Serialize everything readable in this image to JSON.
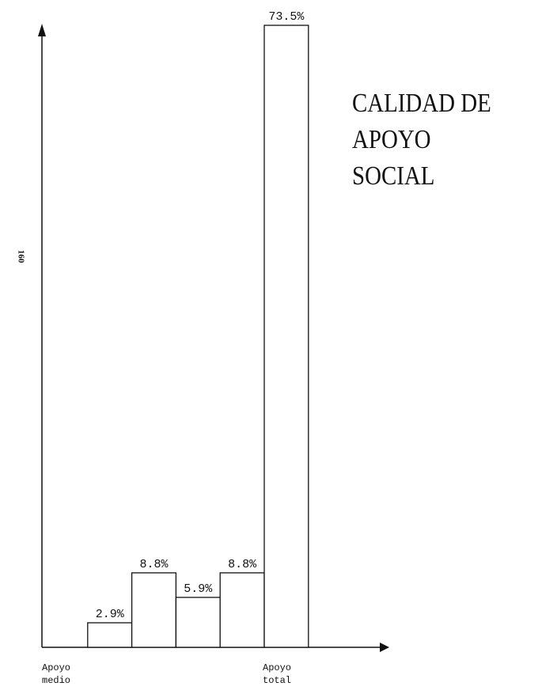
{
  "chart_data": {
    "type": "bar",
    "title": "CALIDAD DE APOYO SOCIAL",
    "page_number": "160",
    "categories": [
      "Apoyo medio",
      null,
      null,
      null,
      null,
      "Apoyo total"
    ],
    "values": [
      null,
      2.9,
      8.8,
      5.9,
      8.8,
      73.5
    ],
    "value_labels": [
      null,
      "2.9%",
      "8.8%",
      "5.9%",
      "8.8%",
      "73.5%"
    ],
    "color": "#ffffff",
    "ylim": [
      0,
      73.5
    ]
  }
}
